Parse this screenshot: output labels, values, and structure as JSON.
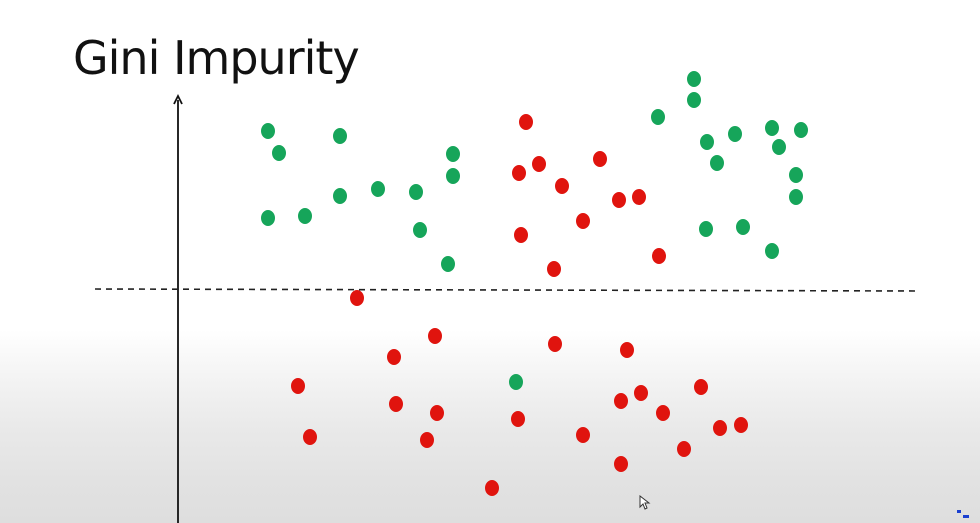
{
  "title": "Gini Impurity",
  "colors": {
    "green": "#16a55a",
    "red": "#e0140e",
    "axis": "#111111",
    "divider": "#222222"
  },
  "icons": {
    "cursor": "mouse-pointer-icon"
  }
}
